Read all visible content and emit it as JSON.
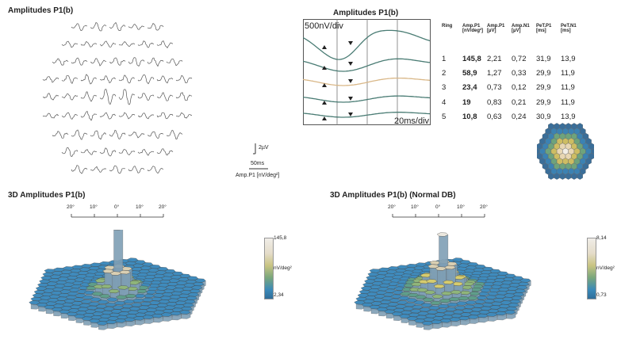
{
  "panel_topleft": {
    "title": "Amplitudes P1(b)"
  },
  "scale_bar": {
    "amp": "2µV",
    "time": "50ms",
    "label": "Amp.P1 [nV/deg²]"
  },
  "trace_panel": {
    "title": "Amplitudes P1(b)",
    "amp_scale": "500nV/div",
    "time_scale": "20ms/div"
  },
  "table": {
    "headers": [
      "Ring",
      "Amp.P1\n[nV/deg²]",
      "Amp.P1\n[µV]",
      "Amp.N1\n[µV]",
      "PeT.P1\n[ms]",
      "PeT.N1\n[ms]"
    ],
    "rows": [
      [
        "1",
        "145,8",
        "2,21",
        "0,72",
        "31,9",
        "13,9"
      ],
      [
        "2",
        "58,9",
        "1,27",
        "0,33",
        "29,9",
        "11,9"
      ],
      [
        "3",
        "23,4",
        "0,73",
        "0,12",
        "29,9",
        "11,9"
      ],
      [
        "4",
        "19",
        "0,83",
        "0,21",
        "29,9",
        "11,9"
      ],
      [
        "5",
        "10,8",
        "0,63",
        "0,24",
        "30,9",
        "13,9"
      ]
    ]
  },
  "plot3d_left": {
    "title": "3D Amplitudes P1(b)",
    "ticks": [
      "20°",
      "10°",
      "0°",
      "10°",
      "20°"
    ],
    "legend_max": "145,8",
    "legend_min": "2,34",
    "legend_unit": "nV/deg²"
  },
  "plot3d_right": {
    "title": "3D Amplitudes P1(b) (Normal DB)",
    "ticks": [
      "20°",
      "10°",
      "0°",
      "10°",
      "20°"
    ],
    "legend_max": "8,14",
    "legend_min": "0,73",
    "legend_unit": "nV/deg²"
  },
  "colors": {
    "trace_gray": "#555555",
    "trace_teal": "#4a7c74",
    "trace_tan": "#d9b787",
    "hex_blue": "#3c86b7",
    "hex_green": "#6fa87c",
    "hex_yellow": "#d9cf74",
    "hex_peak": "#e8e2cf"
  }
}
